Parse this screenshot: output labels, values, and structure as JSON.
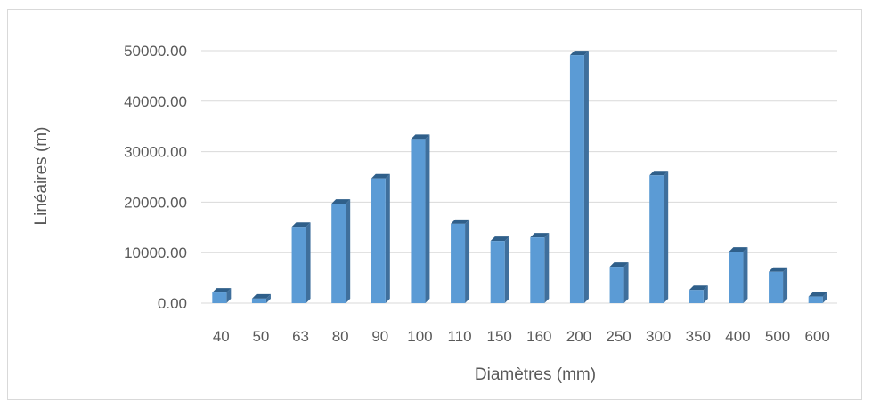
{
  "chart_data": {
    "type": "bar",
    "title": "",
    "xlabel": "Diamètres (mm)",
    "ylabel": "Linéaires (m)",
    "categories": [
      "40",
      "50",
      "63",
      "80",
      "90",
      "100",
      "110",
      "150",
      "160",
      "200",
      "250",
      "300",
      "350",
      "400",
      "500",
      "600"
    ],
    "values": [
      2100,
      900,
      15100,
      19700,
      24700,
      32500,
      15700,
      12300,
      13000,
      49100,
      7200,
      25300,
      2600,
      10200,
      6200,
      1300
    ],
    "ylim": [
      0,
      50000
    ],
    "yticks": [
      "0.00",
      "10000.00",
      "20000.00",
      "30000.00",
      "40000.00",
      "50000.00"
    ],
    "ytick_values": [
      0,
      10000,
      20000,
      30000,
      40000,
      50000
    ],
    "grid": true,
    "legend": "none",
    "colors": {
      "bar_front": "#5b9bd5",
      "bar_side": "#3f6f9c",
      "bar_top": "#2f5f8a",
      "grid": "#d9d9d9",
      "text": "#595959"
    }
  }
}
